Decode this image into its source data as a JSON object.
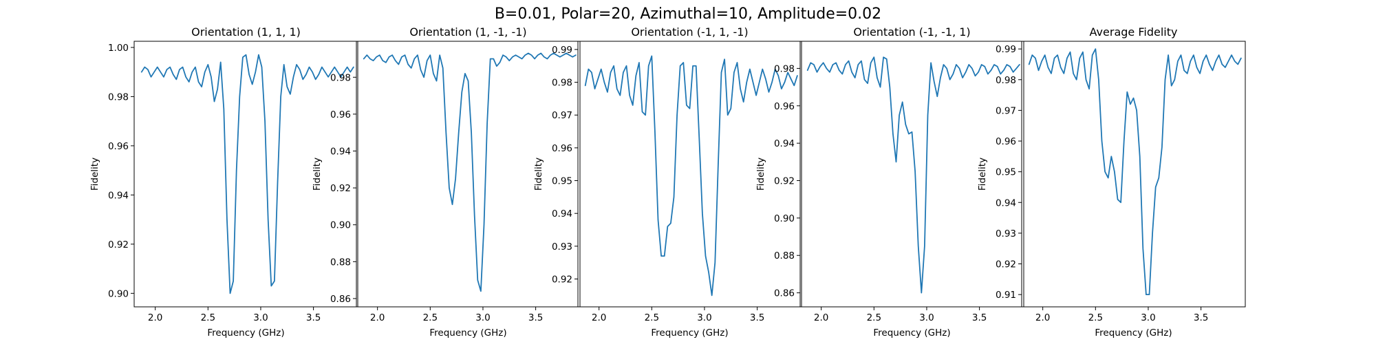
{
  "figure": {
    "suptitle": "B=0.01, Polar=20, Azimuthal=10, Amplitude=0.02"
  },
  "colors": {
    "series": "#1f77b4",
    "axes": "#000000",
    "background": "#ffffff"
  },
  "chart_data": [
    {
      "type": "line",
      "title": "Orientation (1, 1, 1)",
      "xlabel": "Frequency (GHz)",
      "ylabel": "Fidelity",
      "xlim": [
        1.8,
        3.92
      ],
      "ylim": [
        0.8945,
        1.0025
      ],
      "xticks": [
        2.0,
        2.5,
        3.0,
        3.5
      ],
      "xtick_labels": [
        "2.0",
        "2.5",
        "3.0",
        "3.5"
      ],
      "yticks": [
        0.9,
        0.92,
        0.94,
        0.96,
        0.98,
        1.0
      ],
      "ytick_labels": [
        "0.90",
        "0.92",
        "0.94",
        "0.96",
        "0.98",
        "1.00"
      ],
      "grid": false,
      "x": [
        1.87,
        1.9,
        1.93,
        1.96,
        1.99,
        2.02,
        2.05,
        2.08,
        2.11,
        2.14,
        2.17,
        2.2,
        2.23,
        2.26,
        2.29,
        2.32,
        2.35,
        2.38,
        2.41,
        2.44,
        2.47,
        2.5,
        2.53,
        2.56,
        2.59,
        2.62,
        2.65,
        2.68,
        2.71,
        2.74,
        2.77,
        2.8,
        2.83,
        2.86,
        2.89,
        2.92,
        2.95,
        2.98,
        3.01,
        3.04,
        3.07,
        3.1,
        3.13,
        3.16,
        3.19,
        3.22,
        3.25,
        3.28,
        3.31,
        3.34,
        3.37,
        3.4,
        3.43,
        3.46,
        3.49,
        3.52,
        3.55,
        3.58,
        3.61,
        3.64,
        3.67,
        3.7,
        3.73,
        3.76,
        3.79,
        3.82,
        3.85,
        3.88
      ],
      "y": [
        0.99,
        0.992,
        0.991,
        0.988,
        0.99,
        0.992,
        0.99,
        0.988,
        0.991,
        0.992,
        0.989,
        0.987,
        0.991,
        0.992,
        0.988,
        0.986,
        0.99,
        0.992,
        0.986,
        0.984,
        0.99,
        0.993,
        0.988,
        0.978,
        0.983,
        0.994,
        0.975,
        0.93,
        0.9,
        0.905,
        0.95,
        0.98,
        0.996,
        0.997,
        0.989,
        0.985,
        0.99,
        0.997,
        0.992,
        0.97,
        0.93,
        0.903,
        0.905,
        0.945,
        0.98,
        0.993,
        0.984,
        0.981,
        0.988,
        0.993,
        0.991,
        0.987,
        0.989,
        0.992,
        0.99,
        0.987,
        0.989,
        0.992,
        0.99,
        0.988,
        0.99,
        0.992,
        0.99,
        0.988,
        0.99,
        0.992,
        0.99,
        0.992
      ],
      "series": [
        {
          "color": "#1f77b4"
        }
      ]
    },
    {
      "type": "line",
      "title": "Orientation (1, -1, -1)",
      "xlabel": "Frequency (GHz)",
      "ylabel": "Fidelity",
      "xlim": [
        1.8,
        3.92
      ],
      "ylim": [
        0.8555,
        0.9995
      ],
      "xticks": [
        2.0,
        2.5,
        3.0,
        3.5
      ],
      "xtick_labels": [
        "2.0",
        "2.5",
        "3.0",
        "3.5"
      ],
      "yticks": [
        0.86,
        0.88,
        0.9,
        0.92,
        0.94,
        0.96,
        0.98
      ],
      "ytick_labels": [
        "0.86",
        "0.88",
        "0.90",
        "0.92",
        "0.94",
        "0.96",
        "0.98"
      ],
      "grid": false,
      "x": [
        1.87,
        1.9,
        1.93,
        1.96,
        1.99,
        2.02,
        2.05,
        2.08,
        2.11,
        2.14,
        2.17,
        2.2,
        2.23,
        2.26,
        2.29,
        2.32,
        2.35,
        2.38,
        2.41,
        2.44,
        2.47,
        2.5,
        2.53,
        2.56,
        2.59,
        2.62,
        2.65,
        2.68,
        2.71,
        2.74,
        2.77,
        2.8,
        2.83,
        2.86,
        2.89,
        2.92,
        2.95,
        2.98,
        3.01,
        3.04,
        3.07,
        3.1,
        3.13,
        3.16,
        3.19,
        3.22,
        3.25,
        3.28,
        3.31,
        3.34,
        3.37,
        3.4,
        3.43,
        3.46,
        3.49,
        3.52,
        3.55,
        3.58,
        3.61,
        3.64,
        3.67,
        3.7,
        3.73,
        3.76,
        3.79,
        3.82,
        3.85,
        3.88
      ],
      "y": [
        0.99,
        0.992,
        0.99,
        0.989,
        0.991,
        0.992,
        0.989,
        0.988,
        0.991,
        0.992,
        0.989,
        0.987,
        0.991,
        0.992,
        0.987,
        0.985,
        0.99,
        0.992,
        0.984,
        0.98,
        0.989,
        0.992,
        0.982,
        0.978,
        0.992,
        0.985,
        0.95,
        0.92,
        0.911,
        0.925,
        0.95,
        0.972,
        0.982,
        0.978,
        0.95,
        0.905,
        0.87,
        0.864,
        0.9,
        0.955,
        0.99,
        0.99,
        0.986,
        0.988,
        0.992,
        0.991,
        0.989,
        0.991,
        0.992,
        0.991,
        0.99,
        0.992,
        0.993,
        0.992,
        0.99,
        0.992,
        0.993,
        0.991,
        0.99,
        0.992,
        0.993,
        0.992,
        0.991,
        0.992,
        0.993,
        0.992,
        0.991,
        0.992
      ],
      "series": [
        {
          "color": "#1f77b4"
        }
      ]
    },
    {
      "type": "line",
      "title": "Orientation (-1, 1, -1)",
      "xlabel": "Frequency (GHz)",
      "ylabel": "Fidelity",
      "xlim": [
        1.8,
        3.92
      ],
      "ylim": [
        0.9115,
        0.9925
      ],
      "xticks": [
        2.0,
        2.5,
        3.0,
        3.5
      ],
      "xtick_labels": [
        "2.0",
        "2.5",
        "3.0",
        "3.5"
      ],
      "yticks": [
        0.92,
        0.93,
        0.94,
        0.95,
        0.96,
        0.97,
        0.98,
        0.99
      ],
      "ytick_labels": [
        "0.92",
        "0.93",
        "0.94",
        "0.95",
        "0.96",
        "0.97",
        "0.98",
        "0.99"
      ],
      "grid": false,
      "x": [
        1.87,
        1.9,
        1.93,
        1.96,
        1.99,
        2.02,
        2.05,
        2.08,
        2.11,
        2.14,
        2.17,
        2.2,
        2.23,
        2.26,
        2.29,
        2.32,
        2.35,
        2.38,
        2.41,
        2.44,
        2.47,
        2.5,
        2.53,
        2.56,
        2.59,
        2.62,
        2.65,
        2.68,
        2.71,
        2.74,
        2.77,
        2.8,
        2.83,
        2.86,
        2.89,
        2.92,
        2.95,
        2.98,
        3.01,
        3.04,
        3.07,
        3.1,
        3.13,
        3.16,
        3.19,
        3.22,
        3.25,
        3.28,
        3.31,
        3.34,
        3.37,
        3.4,
        3.43,
        3.46,
        3.49,
        3.52,
        3.55,
        3.58,
        3.61,
        3.64,
        3.67,
        3.7,
        3.73,
        3.76,
        3.79,
        3.82,
        3.85,
        3.88
      ],
      "y": [
        0.979,
        0.984,
        0.983,
        0.978,
        0.981,
        0.984,
        0.98,
        0.977,
        0.983,
        0.985,
        0.978,
        0.976,
        0.983,
        0.985,
        0.976,
        0.973,
        0.982,
        0.986,
        0.971,
        0.97,
        0.985,
        0.988,
        0.965,
        0.938,
        0.927,
        0.927,
        0.936,
        0.937,
        0.945,
        0.97,
        0.985,
        0.986,
        0.973,
        0.972,
        0.985,
        0.985,
        0.963,
        0.94,
        0.927,
        0.922,
        0.915,
        0.925,
        0.955,
        0.983,
        0.987,
        0.97,
        0.972,
        0.983,
        0.986,
        0.978,
        0.974,
        0.98,
        0.984,
        0.98,
        0.976,
        0.98,
        0.984,
        0.981,
        0.977,
        0.98,
        0.984,
        0.982,
        0.978,
        0.98,
        0.983,
        0.981,
        0.979,
        0.982
      ],
      "series": [
        {
          "color": "#1f77b4"
        }
      ]
    },
    {
      "type": "line",
      "title": "Orientation (-1, -1, 1)",
      "xlabel": "Frequency (GHz)",
      "ylabel": "Fidelity",
      "xlim": [
        1.8,
        3.92
      ],
      "ylim": [
        0.8525,
        0.9945
      ],
      "xticks": [
        2.0,
        2.5,
        3.0,
        3.5
      ],
      "xtick_labels": [
        "2.0",
        "2.5",
        "3.0",
        "3.5"
      ],
      "yticks": [
        0.86,
        0.88,
        0.9,
        0.92,
        0.94,
        0.96,
        0.98
      ],
      "ytick_labels": [
        "0.86",
        "0.88",
        "0.90",
        "0.92",
        "0.94",
        "0.96",
        "0.98"
      ],
      "grid": false,
      "x": [
        1.87,
        1.9,
        1.93,
        1.96,
        1.99,
        2.02,
        2.05,
        2.08,
        2.11,
        2.14,
        2.17,
        2.2,
        2.23,
        2.26,
        2.29,
        2.32,
        2.35,
        2.38,
        2.41,
        2.44,
        2.47,
        2.5,
        2.53,
        2.56,
        2.59,
        2.62,
        2.65,
        2.68,
        2.71,
        2.74,
        2.77,
        2.8,
        2.83,
        2.86,
        2.89,
        2.92,
        2.95,
        2.98,
        3.01,
        3.04,
        3.07,
        3.1,
        3.13,
        3.16,
        3.19,
        3.22,
        3.25,
        3.28,
        3.31,
        3.34,
        3.37,
        3.4,
        3.43,
        3.46,
        3.49,
        3.52,
        3.55,
        3.58,
        3.61,
        3.64,
        3.67,
        3.7,
        3.73,
        3.76,
        3.79,
        3.82,
        3.85,
        3.88
      ],
      "y": [
        0.979,
        0.983,
        0.982,
        0.978,
        0.981,
        0.983,
        0.98,
        0.978,
        0.982,
        0.983,
        0.979,
        0.977,
        0.982,
        0.984,
        0.978,
        0.975,
        0.982,
        0.984,
        0.974,
        0.972,
        0.983,
        0.986,
        0.975,
        0.97,
        0.986,
        0.985,
        0.97,
        0.945,
        0.93,
        0.955,
        0.962,
        0.95,
        0.945,
        0.946,
        0.925,
        0.885,
        0.86,
        0.885,
        0.955,
        0.983,
        0.973,
        0.965,
        0.975,
        0.982,
        0.98,
        0.974,
        0.977,
        0.982,
        0.98,
        0.975,
        0.978,
        0.982,
        0.98,
        0.976,
        0.978,
        0.982,
        0.981,
        0.977,
        0.979,
        0.982,
        0.981,
        0.977,
        0.979,
        0.982,
        0.981,
        0.978,
        0.98,
        0.982
      ],
      "series": [
        {
          "color": "#1f77b4"
        }
      ]
    },
    {
      "type": "line",
      "title": "Average Fidelity",
      "xlabel": "Frequency (GHz)",
      "ylabel": "Fidelity",
      "xlim": [
        1.8,
        3.92
      ],
      "ylim": [
        0.906,
        0.9925
      ],
      "xticks": [
        2.0,
        2.5,
        3.0,
        3.5
      ],
      "xtick_labels": [
        "2.0",
        "2.5",
        "3.0",
        "3.5"
      ],
      "yticks": [
        0.91,
        0.92,
        0.93,
        0.94,
        0.95,
        0.96,
        0.97,
        0.98,
        0.99
      ],
      "ytick_labels": [
        "0.91",
        "0.92",
        "0.93",
        "0.94",
        "0.95",
        "0.96",
        "0.97",
        "0.98",
        "0.99"
      ],
      "grid": false,
      "x": [
        1.87,
        1.9,
        1.93,
        1.96,
        1.99,
        2.02,
        2.05,
        2.08,
        2.11,
        2.14,
        2.17,
        2.2,
        2.23,
        2.26,
        2.29,
        2.32,
        2.35,
        2.38,
        2.41,
        2.44,
        2.47,
        2.5,
        2.53,
        2.56,
        2.59,
        2.62,
        2.65,
        2.68,
        2.71,
        2.74,
        2.77,
        2.8,
        2.83,
        2.86,
        2.89,
        2.92,
        2.95,
        2.98,
        3.01,
        3.04,
        3.07,
        3.1,
        3.13,
        3.16,
        3.19,
        3.22,
        3.25,
        3.28,
        3.31,
        3.34,
        3.37,
        3.4,
        3.43,
        3.46,
        3.49,
        3.52,
        3.55,
        3.58,
        3.61,
        3.64,
        3.67,
        3.7,
        3.73,
        3.76,
        3.79,
        3.82,
        3.85,
        3.88
      ],
      "y": [
        0.985,
        0.988,
        0.987,
        0.983,
        0.986,
        0.988,
        0.984,
        0.982,
        0.987,
        0.988,
        0.984,
        0.982,
        0.987,
        0.989,
        0.982,
        0.98,
        0.987,
        0.989,
        0.98,
        0.977,
        0.988,
        0.99,
        0.98,
        0.96,
        0.95,
        0.948,
        0.955,
        0.95,
        0.941,
        0.94,
        0.96,
        0.976,
        0.972,
        0.974,
        0.97,
        0.955,
        0.925,
        0.91,
        0.91,
        0.93,
        0.945,
        0.948,
        0.958,
        0.98,
        0.988,
        0.978,
        0.98,
        0.986,
        0.988,
        0.983,
        0.982,
        0.986,
        0.988,
        0.984,
        0.982,
        0.986,
        0.988,
        0.985,
        0.983,
        0.986,
        0.988,
        0.985,
        0.984,
        0.986,
        0.988,
        0.986,
        0.985,
        0.987
      ],
      "series": [
        {
          "color": "#1f77b4"
        }
      ]
    }
  ]
}
